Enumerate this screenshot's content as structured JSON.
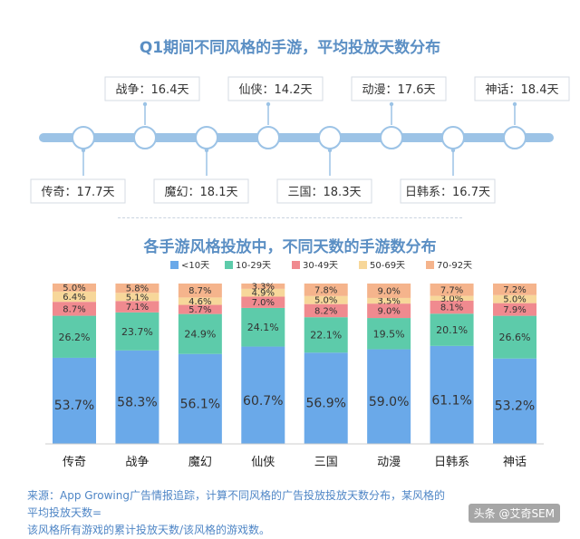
{
  "colors": {
    "title": "#5b8fc4",
    "timeline_line": "#9cc3e6",
    "node_fill": "#ffffff",
    "node_stroke": "#9cc3e6",
    "seg_lt10": "#6aa9e9",
    "seg_10_29": "#5dcbaa",
    "seg_30_49": "#f08a8f",
    "seg_50_69": "#f7d79a",
    "seg_70_92": "#f5b48c"
  },
  "timeline": {
    "title": "Q1期间不同风格的手游，平均投放天数分布",
    "items": [
      {
        "genre": "传奇",
        "label": "传奇：17.7天",
        "position": "below"
      },
      {
        "genre": "战争",
        "label": "战争：16.4天",
        "position": "above"
      },
      {
        "genre": "魔幻",
        "label": "魔幻：18.1天",
        "position": "below"
      },
      {
        "genre": "仙侠",
        "label": "仙侠：14.2天",
        "position": "above"
      },
      {
        "genre": "三国",
        "label": "三国：18.3天",
        "position": "below"
      },
      {
        "genre": "动漫",
        "label": "动漫：17.6天",
        "position": "above"
      },
      {
        "genre": "日韩系",
        "label": "日韩系：16.7天",
        "position": "below"
      },
      {
        "genre": "神话",
        "label": "神话：18.4天",
        "position": "above"
      }
    ]
  },
  "chart_data": {
    "type": "bar",
    "stacked": true,
    "normalized": true,
    "title": "各手游风格投放中，不同天数的手游数分布",
    "legend_position": "top",
    "categories": [
      "传奇",
      "战争",
      "魔幻",
      "仙侠",
      "三国",
      "动漫",
      "日韩系",
      "神话"
    ],
    "series": [
      {
        "name": "<10天",
        "values": [
          53.7,
          58.3,
          56.1,
          60.7,
          56.9,
          59.0,
          61.1,
          53.2
        ],
        "labels": [
          "53.7%",
          "58.3%",
          "56.1%",
          "60.7%",
          "56.9%",
          "59.0%",
          "61.1%",
          "53.2%"
        ]
      },
      {
        "name": "10-29天",
        "values": [
          26.2,
          23.7,
          24.9,
          24.1,
          22.1,
          19.5,
          20.1,
          26.6
        ],
        "labels": [
          "26.2%",
          "23.7%",
          "24.9%",
          "24.1%",
          "22.1%",
          "19.5%",
          "20.1%",
          "26.6%"
        ]
      },
      {
        "name": "30-49天",
        "values": [
          8.7,
          7.1,
          5.7,
          7.0,
          8.2,
          9.0,
          8.1,
          7.9
        ],
        "labels": [
          "8.7%",
          "7.1%",
          "5.7%",
          "7.0%",
          "8.2%",
          "9.0%",
          "8.1%",
          "7.9%"
        ]
      },
      {
        "name": "50-69天",
        "values": [
          6.4,
          5.1,
          4.6,
          4.9,
          5.0,
          3.5,
          3.0,
          5.0
        ],
        "labels": [
          "6.4%",
          "5.1%",
          "4.6%",
          "4.9%",
          "5.0%",
          "3.5%",
          "3.0%",
          "5.0%"
        ]
      },
      {
        "name": "70-92天",
        "values": [
          5.0,
          5.8,
          8.7,
          3.3,
          7.8,
          9.0,
          7.7,
          7.2
        ],
        "labels": [
          "5.0%",
          "5.8%",
          "8.7%",
          "3.3%",
          "7.8%",
          "9.0%",
          "7.7%",
          "7.2%"
        ]
      }
    ],
    "ylim": [
      0,
      100
    ]
  },
  "source": {
    "line1": "来源：App Growing广告情报追踪，计算不同风格的广告投放投放天数分布，某风格的平均投放天数=",
    "line2": "该风格所有游戏的累计投放天数/该风格的游戏数。"
  },
  "watermark": "头条 @艾奇SEM"
}
